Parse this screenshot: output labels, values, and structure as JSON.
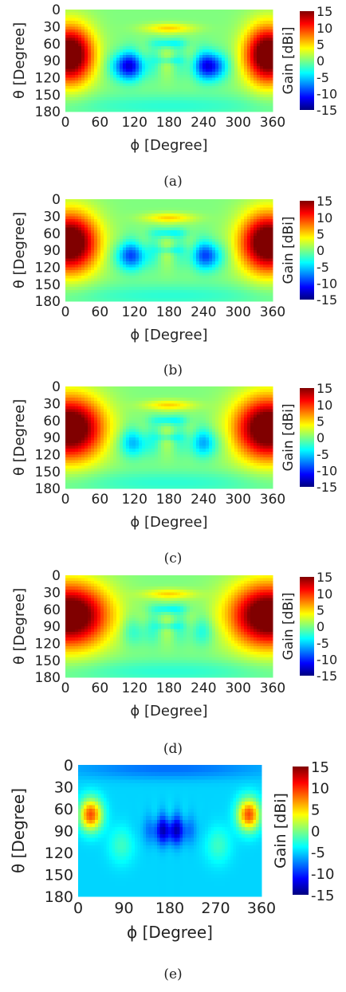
{
  "figure": {
    "caption_labels": [
      "(a)",
      "(b)",
      "(c)",
      "(d)",
      "(e)"
    ]
  },
  "chart_data": [
    {
      "type": "heatmap",
      "caption": "(a)",
      "xlabel": "ϕ [Degree]",
      "ylabel": "θ [Degree]",
      "colorbar_label": "Gain [dBi]",
      "x_ticks": [
        "0",
        "60",
        "120",
        "180",
        "240",
        "300",
        "360"
      ],
      "y_ticks": [
        "0",
        "30",
        "60",
        "90",
        "120",
        "150",
        "180"
      ],
      "colorbar_ticks": [
        "15",
        "10",
        "5",
        "0",
        "-5",
        "-10",
        "-15"
      ],
      "xlim": [
        0,
        360
      ],
      "ylim": [
        0,
        180
      ],
      "clim": [
        -15,
        15
      ],
      "colormap": "jet",
      "regions": [
        {
          "phi": 20,
          "theta": 80,
          "gain_dBi": 15
        },
        {
          "phi": 340,
          "theta": 80,
          "gain_dBi": 15
        },
        {
          "phi": 110,
          "theta": 100,
          "gain_dBi": -10
        },
        {
          "phi": 250,
          "theta": 100,
          "gain_dBi": -10
        },
        {
          "phi": 180,
          "theta": 35,
          "gain_dBi": 5
        },
        {
          "phi": 180,
          "theta": 150,
          "gain_dBi": -2
        }
      ]
    },
    {
      "type": "heatmap",
      "caption": "(b)",
      "xlabel": "ϕ [Degree]",
      "ylabel": "θ [Degree]",
      "colorbar_label": "Gain [dBi]",
      "x_ticks": [
        "0",
        "60",
        "120",
        "180",
        "240",
        "300",
        "360"
      ],
      "y_ticks": [
        "0",
        "30",
        "60",
        "90",
        "120",
        "150",
        "180"
      ],
      "colorbar_ticks": [
        "15",
        "10",
        "5",
        "0",
        "-5",
        "-10",
        "-15"
      ],
      "xlim": [
        0,
        360
      ],
      "ylim": [
        0,
        180
      ],
      "clim": [
        -15,
        15
      ],
      "colormap": "jet",
      "regions": [
        {
          "phi": 25,
          "theta": 80,
          "gain_dBi": 15
        },
        {
          "phi": 335,
          "theta": 80,
          "gain_dBi": 15
        },
        {
          "phi": 115,
          "theta": 100,
          "gain_dBi": -8
        },
        {
          "phi": 245,
          "theta": 100,
          "gain_dBi": -8
        },
        {
          "phi": 180,
          "theta": 35,
          "gain_dBi": 5
        }
      ]
    },
    {
      "type": "heatmap",
      "caption": "(c)",
      "xlabel": "ϕ [Degree]",
      "ylabel": "θ [Degree]",
      "colorbar_label": "Gain [dBi]",
      "x_ticks": [
        "0",
        "60",
        "120",
        "180",
        "240",
        "300",
        "360"
      ],
      "y_ticks": [
        "0",
        "30",
        "60",
        "90",
        "120",
        "150",
        "180"
      ],
      "colorbar_ticks": [
        "15",
        "10",
        "5",
        "0",
        "-5",
        "-10",
        "-15"
      ],
      "xlim": [
        0,
        360
      ],
      "ylim": [
        0,
        180
      ],
      "clim": [
        -15,
        15
      ],
      "colormap": "jet",
      "regions": [
        {
          "phi": 30,
          "theta": 75,
          "gain_dBi": 15
        },
        {
          "phi": 330,
          "theta": 75,
          "gain_dBi": 15
        },
        {
          "phi": 100,
          "theta": 100,
          "gain_dBi": -6
        },
        {
          "phi": 260,
          "theta": 100,
          "gain_dBi": -6
        },
        {
          "phi": 180,
          "theta": 35,
          "gain_dBi": 5
        }
      ]
    },
    {
      "type": "heatmap",
      "caption": "(d)",
      "xlabel": "ϕ [Degree]",
      "ylabel": "θ [Degree]",
      "colorbar_label": "Gain [dBi]",
      "x_ticks": [
        "0",
        "60",
        "120",
        "180",
        "240",
        "300",
        "360"
      ],
      "y_ticks": [
        "0",
        "30",
        "60",
        "90",
        "120",
        "150",
        "180"
      ],
      "colorbar_ticks": [
        "15",
        "10",
        "5",
        "0",
        "-5",
        "-10",
        "-15"
      ],
      "xlim": [
        0,
        360
      ],
      "ylim": [
        0,
        180
      ],
      "clim": [
        -15,
        15
      ],
      "colormap": "jet",
      "regions": [
        {
          "phi": 35,
          "theta": 70,
          "gain_dBi": 15
        },
        {
          "phi": 325,
          "theta": 70,
          "gain_dBi": 15
        },
        {
          "phi": 180,
          "theta": 35,
          "gain_dBi": 5
        },
        {
          "phi": 180,
          "theta": 70,
          "gain_dBi": -4
        }
      ]
    },
    {
      "type": "heatmap",
      "caption": "(e)",
      "xlabel": "ϕ [Degree]",
      "ylabel": "θ [Degree]",
      "colorbar_label": "Gain [dBi]",
      "x_ticks": [
        "0",
        "90",
        "180",
        "270",
        "360"
      ],
      "y_ticks": [
        "0",
        "30",
        "60",
        "90",
        "120",
        "150",
        "180"
      ],
      "colorbar_ticks": [
        "15",
        "10",
        "5",
        "0",
        "-5",
        "-10",
        "-15"
      ],
      "xlim": [
        0,
        360
      ],
      "ylim": [
        0,
        180
      ],
      "clim": [
        -15,
        15
      ],
      "colormap": "jet",
      "regions": [
        {
          "phi": 30,
          "theta": 70,
          "gain_dBi": 8
        },
        {
          "phi": 330,
          "theta": 70,
          "gain_dBi": 8
        },
        {
          "phi": 180,
          "theta": 90,
          "gain_dBi": -12
        },
        {
          "phi": 180,
          "theta": 10,
          "gain_dBi": -6
        }
      ]
    }
  ]
}
